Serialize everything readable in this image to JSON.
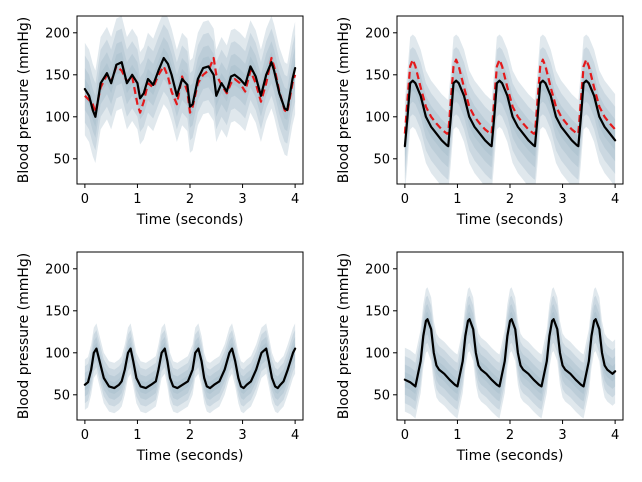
{
  "chart_data": [
    {
      "type": "line",
      "xlabel": "Time (seconds)",
      "ylabel": "Blood pressure (mmHg)",
      "xlim": [
        -0.15,
        4.15
      ],
      "ylim": [
        20,
        220
      ],
      "xticks": [
        0,
        1,
        2,
        3,
        4
      ],
      "yticks": [
        50,
        100,
        150,
        200
      ],
      "band_color": "#9fb9c6",
      "band_offsets": [
        55,
        40,
        25,
        12
      ],
      "series": [
        {
          "style": "solid",
          "color": "#000000",
          "x": [
            0,
            0.08,
            0.15,
            0.2,
            0.3,
            0.42,
            0.5,
            0.6,
            0.7,
            0.8,
            0.9,
            1.0,
            1.05,
            1.12,
            1.2,
            1.3,
            1.4,
            1.5,
            1.58,
            1.65,
            1.75,
            1.85,
            1.95,
            2.0,
            2.05,
            2.15,
            2.25,
            2.35,
            2.45,
            2.5,
            2.6,
            2.7,
            2.78,
            2.85,
            2.95,
            3.05,
            3.15,
            3.25,
            3.35,
            3.45,
            3.55,
            3.6,
            3.7,
            3.8,
            3.85,
            3.95,
            4.0
          ],
          "y": [
            133,
            125,
            108,
            100,
            140,
            152,
            140,
            162,
            165,
            140,
            150,
            140,
            122,
            128,
            145,
            138,
            155,
            170,
            163,
            150,
            125,
            145,
            138,
            112,
            115,
            145,
            158,
            160,
            150,
            125,
            140,
            130,
            148,
            150,
            145,
            138,
            160,
            148,
            125,
            150,
            165,
            155,
            128,
            110,
            108,
            145,
            158
          ]
        },
        {
          "style": "dashed",
          "color": "#e41a1c",
          "x": [
            0,
            0.08,
            0.15,
            0.2,
            0.3,
            0.42,
            0.5,
            0.6,
            0.7,
            0.8,
            0.9,
            1.0,
            1.05,
            1.12,
            1.2,
            1.3,
            1.4,
            1.5,
            1.58,
            1.65,
            1.75,
            1.85,
            1.95,
            2.0,
            2.05,
            2.15,
            2.25,
            2.35,
            2.45,
            2.5,
            2.6,
            2.7,
            2.78,
            2.85,
            2.95,
            3.05,
            3.15,
            3.25,
            3.35,
            3.45,
            3.55,
            3.6,
            3.7,
            3.8,
            3.85,
            3.95,
            4.0
          ],
          "y": [
            125,
            120,
            115,
            105,
            135,
            150,
            142,
            160,
            155,
            142,
            148,
            115,
            105,
            118,
            140,
            135,
            150,
            160,
            148,
            130,
            115,
            148,
            130,
            105,
            112,
            140,
            150,
            155,
            170,
            150,
            138,
            128,
            140,
            145,
            140,
            130,
            155,
            140,
            118,
            140,
            170,
            160,
            130,
            108,
            105,
            140,
            150
          ]
        }
      ]
    },
    {
      "type": "line",
      "xlabel": "Time (seconds)",
      "ylabel": "Blood pressure (mmHg)",
      "xlim": [
        -0.15,
        4.15
      ],
      "ylim": [
        20,
        220
      ],
      "xticks": [
        0,
        1,
        2,
        3,
        4
      ],
      "yticks": [
        50,
        100,
        150,
        200
      ],
      "band_color": "#9fb9c6",
      "band_offsets": [
        55,
        40,
        25,
        12
      ],
      "series": [
        {
          "style": "solid",
          "color": "#000000",
          "x": [
            0,
            0.05,
            0.1,
            0.15,
            0.2,
            0.3,
            0.4,
            0.5,
            0.6,
            0.7,
            0.8,
            0.825,
            0.875,
            0.925,
            0.975,
            1.025,
            1.125,
            1.225,
            1.325,
            1.425,
            1.525,
            1.625,
            1.65,
            1.7,
            1.75,
            1.8,
            1.85,
            1.95,
            2.05,
            2.15,
            2.25,
            2.35,
            2.45,
            2.475,
            2.525,
            2.575,
            2.625,
            2.675,
            2.775,
            2.875,
            2.975,
            3.075,
            3.175,
            3.275,
            3.3,
            3.35,
            3.4,
            3.45,
            3.5,
            3.6,
            3.7,
            3.8,
            3.9,
            4.0
          ],
          "y": [
            65,
            100,
            140,
            143,
            140,
            125,
            100,
            88,
            80,
            72,
            66,
            65,
            100,
            140,
            143,
            140,
            125,
            100,
            88,
            80,
            72,
            66,
            65,
            100,
            140,
            143,
            140,
            125,
            100,
            88,
            80,
            72,
            66,
            65,
            100,
            140,
            143,
            140,
            125,
            100,
            88,
            80,
            72,
            66,
            65,
            100,
            140,
            143,
            140,
            125,
            100,
            88,
            80,
            72
          ]
        },
        {
          "style": "dashed",
          "color": "#e41a1c",
          "x": [
            0,
            0.05,
            0.1,
            0.15,
            0.2,
            0.3,
            0.4,
            0.5,
            0.6,
            0.7,
            0.8,
            0.825,
            0.875,
            0.925,
            0.975,
            1.025,
            1.125,
            1.225,
            1.325,
            1.425,
            1.525,
            1.625,
            1.65,
            1.7,
            1.75,
            1.8,
            1.85,
            1.95,
            2.05,
            2.15,
            2.25,
            2.35,
            2.45,
            2.475,
            2.525,
            2.575,
            2.625,
            2.675,
            2.775,
            2.875,
            2.975,
            3.075,
            3.175,
            3.275,
            3.3,
            3.35,
            3.4,
            3.45,
            3.5,
            3.6,
            3.7,
            3.8,
            3.9,
            4.0
          ],
          "y": [
            80,
            120,
            160,
            168,
            160,
            135,
            112,
            100,
            92,
            85,
            80,
            80,
            120,
            160,
            168,
            160,
            135,
            112,
            100,
            92,
            85,
            80,
            80,
            120,
            160,
            168,
            160,
            135,
            112,
            100,
            92,
            85,
            80,
            80,
            120,
            160,
            168,
            160,
            135,
            112,
            100,
            92,
            85,
            80,
            80,
            120,
            160,
            168,
            160,
            135,
            112,
            100,
            92,
            85
          ]
        }
      ]
    },
    {
      "type": "line",
      "xlabel": "Time (seconds)",
      "ylabel": "Blood pressure (mmHg)",
      "xlim": [
        -0.15,
        4.15
      ],
      "ylim": [
        20,
        220
      ],
      "xticks": [
        0,
        1,
        2,
        3,
        4
      ],
      "yticks": [
        50,
        100,
        150,
        200
      ],
      "band_color": "#9fb9c6",
      "band_offsets": [
        30,
        22,
        14,
        7
      ],
      "series": [
        {
          "style": "solid",
          "color": "#000000",
          "x": [
            0,
            0.06,
            0.12,
            0.17,
            0.22,
            0.28,
            0.36,
            0.46,
            0.56,
            0.65,
            0.7,
            0.76,
            0.82,
            0.87,
            0.92,
            0.98,
            1.06,
            1.16,
            1.26,
            1.35,
            1.4,
            1.46,
            1.52,
            1.57,
            1.62,
            1.68,
            1.76,
            1.86,
            1.96,
            2.05,
            2.1,
            2.16,
            2.22,
            2.27,
            2.32,
            2.38,
            2.46,
            2.56,
            2.66,
            2.75,
            2.8,
            2.86,
            2.92,
            2.97,
            3.02,
            3.08,
            3.16,
            3.26,
            3.36,
            3.45,
            3.5,
            3.56,
            3.62,
            3.67,
            3.72,
            3.78,
            3.86,
            3.96,
            4.0
          ],
          "y": [
            62,
            65,
            80,
            100,
            105,
            90,
            70,
            60,
            58,
            62,
            66,
            80,
            100,
            105,
            90,
            70,
            60,
            58,
            62,
            66,
            80,
            100,
            105,
            90,
            70,
            60,
            58,
            62,
            66,
            80,
            100,
            105,
            90,
            70,
            60,
            58,
            62,
            66,
            80,
            100,
            105,
            90,
            70,
            60,
            58,
            62,
            66,
            80,
            100,
            105,
            90,
            70,
            60,
            58,
            62,
            66,
            80,
            100,
            105
          ]
        }
      ]
    },
    {
      "type": "line",
      "xlabel": "Time (seconds)",
      "ylabel": "Blood pressure (mmHg)",
      "xlim": [
        -0.15,
        4.15
      ],
      "ylim": [
        20,
        220
      ],
      "xticks": [
        0,
        1,
        2,
        3,
        4
      ],
      "yticks": [
        50,
        100,
        150,
        200
      ],
      "band_color": "#9fb9c6",
      "band_offsets": [
        38,
        28,
        18,
        9
      ],
      "series": [
        {
          "style": "solid",
          "color": "#000000",
          "x": [
            0,
            0.1,
            0.2,
            0.3,
            0.35,
            0.4,
            0.43,
            0.5,
            0.55,
            0.6,
            0.65,
            0.75,
            0.85,
            0.95,
            1.0,
            1.1,
            1.15,
            1.2,
            1.23,
            1.3,
            1.35,
            1.4,
            1.45,
            1.55,
            1.65,
            1.75,
            1.8,
            1.9,
            1.95,
            2.0,
            2.03,
            2.1,
            2.15,
            2.2,
            2.25,
            2.35,
            2.45,
            2.55,
            2.6,
            2.7,
            2.75,
            2.8,
            2.83,
            2.9,
            2.95,
            3.0,
            3.05,
            3.15,
            3.25,
            3.35,
            3.4,
            3.5,
            3.55,
            3.6,
            3.63,
            3.7,
            3.75,
            3.8,
            3.85,
            3.95,
            4.0
          ],
          "y": [
            68,
            65,
            60,
            90,
            120,
            138,
            140,
            128,
            100,
            85,
            80,
            75,
            68,
            62,
            60,
            90,
            120,
            138,
            140,
            128,
            100,
            85,
            80,
            75,
            68,
            62,
            60,
            90,
            120,
            138,
            140,
            128,
            100,
            85,
            80,
            75,
            68,
            62,
            60,
            90,
            120,
            138,
            140,
            128,
            100,
            85,
            80,
            75,
            68,
            62,
            60,
            90,
            120,
            138,
            140,
            128,
            100,
            85,
            80,
            75,
            78
          ]
        }
      ]
    }
  ]
}
